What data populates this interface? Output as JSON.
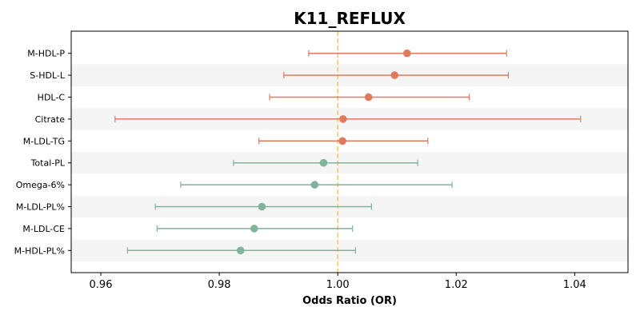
{
  "chart_data": {
    "type": "forest",
    "title": "K11_REFLUX",
    "xlabel": "Odds Ratio (OR)",
    "xlim": [
      0.955,
      1.049
    ],
    "xticks": [
      0.96,
      0.98,
      1.0,
      1.02,
      1.04
    ],
    "xtick_labels": [
      "0.96",
      "0.98",
      "1.00",
      "1.02",
      "1.04"
    ],
    "reference_line": 1.0,
    "grid": false,
    "row_striping": true,
    "colors": {
      "positive": "#e07a5f",
      "negative": "#81b29a",
      "reference": "#f2c879",
      "stripe": "#f5f5f5"
    },
    "rows": [
      {
        "label": "M-HDL-P",
        "or": 1.0117,
        "lo": 0.9951,
        "hi": 1.0285
      },
      {
        "label": "S-HDL-L",
        "or": 1.0096,
        "lo": 0.9909,
        "hi": 1.0288
      },
      {
        "label": "HDL-C",
        "or": 1.0052,
        "lo": 0.9885,
        "hi": 1.0222
      },
      {
        "label": "Citrate",
        "or": 1.0009,
        "lo": 0.9624,
        "hi": 1.041
      },
      {
        "label": "M-LDL-TG",
        "or": 1.0008,
        "lo": 0.9867,
        "hi": 1.0152
      },
      {
        "label": "Total-PL",
        "or": 0.9976,
        "lo": 0.9824,
        "hi": 1.0135
      },
      {
        "label": "Omega-6%",
        "or": 0.9961,
        "lo": 0.9735,
        "hi": 1.0193
      },
      {
        "label": "M-LDL-PL%",
        "or": 0.9872,
        "lo": 0.9692,
        "hi": 1.0057
      },
      {
        "label": "M-LDL-CE",
        "or": 0.9859,
        "lo": 0.9695,
        "hi": 1.0025
      },
      {
        "label": "M-HDL-PL%",
        "or": 0.9836,
        "lo": 0.9645,
        "hi": 1.003
      }
    ]
  }
}
